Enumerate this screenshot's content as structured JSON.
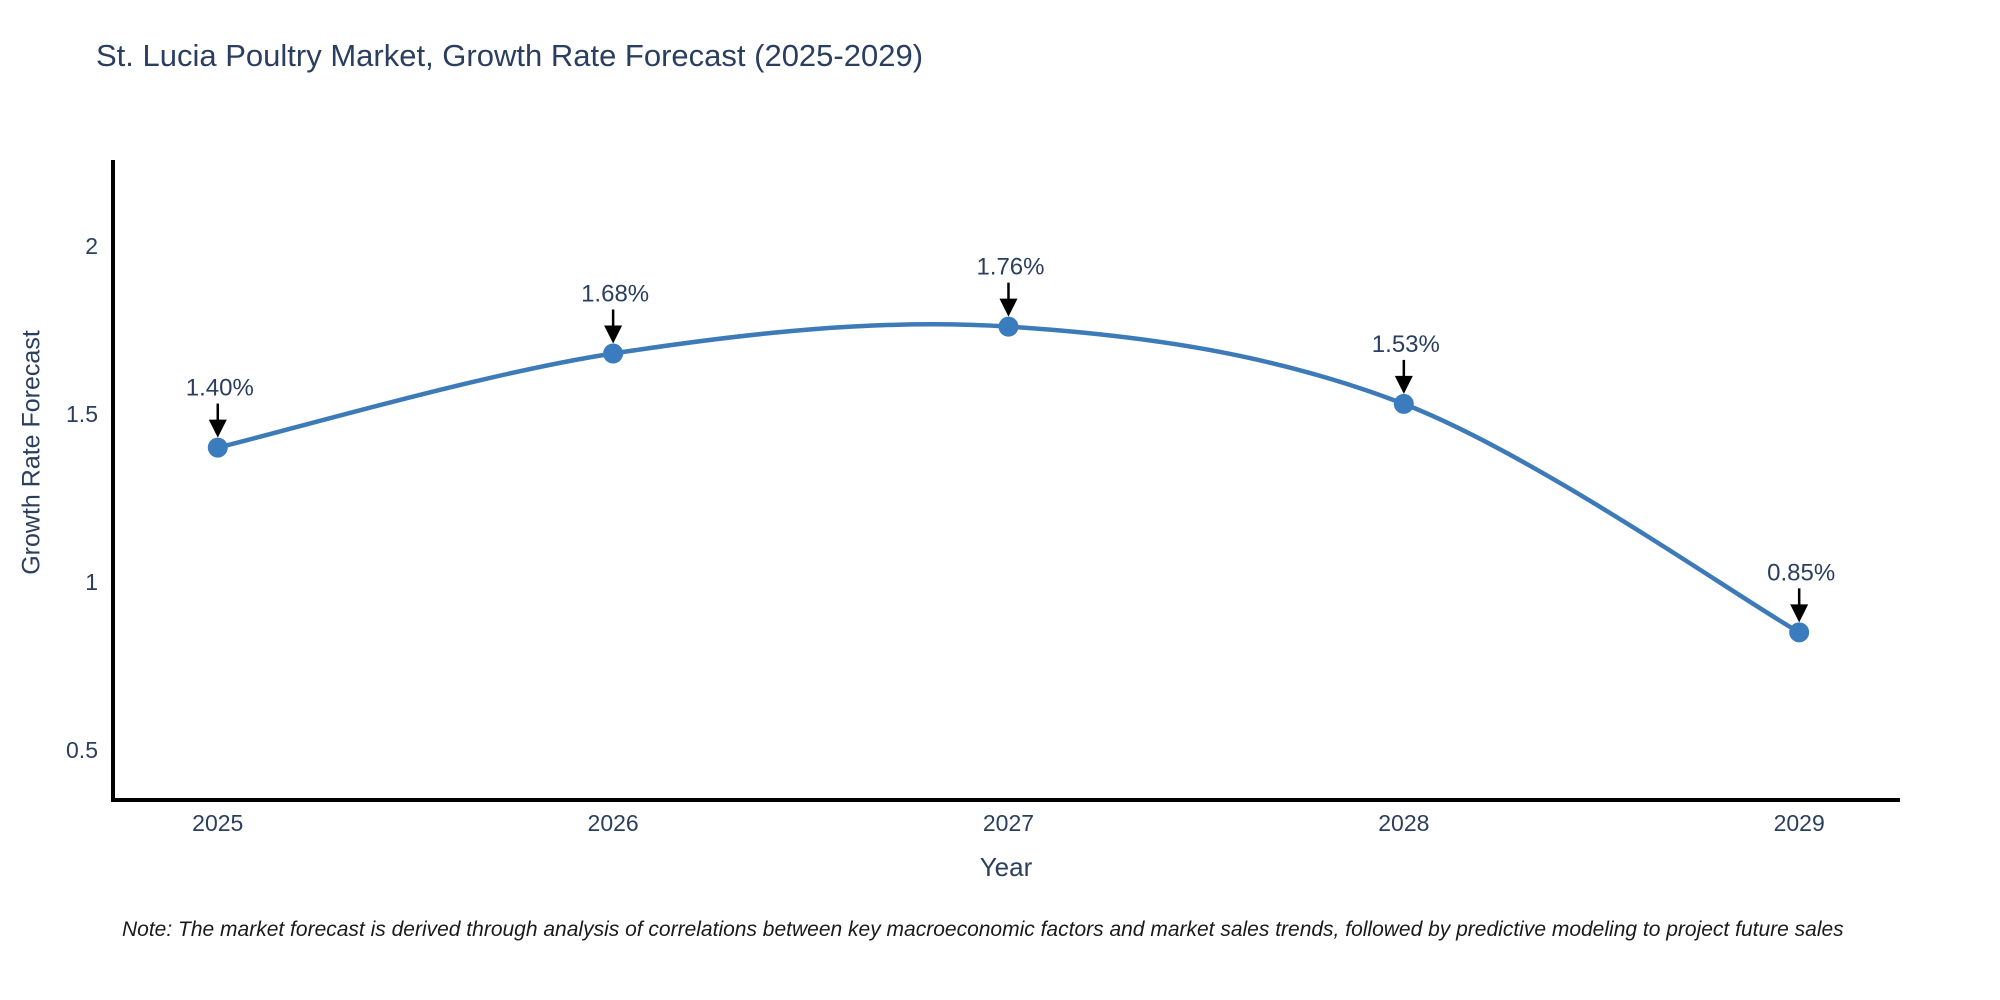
{
  "title": "St. Lucia Poultry Market, Growth Rate Forecast (2025-2029)",
  "footnote": "Note: The market forecast is derived through analysis of correlations between key macroeconomic factors and market sales trends, followed by predictive modeling to project future sales",
  "chart_data": {
    "type": "line",
    "title": "St. Lucia Poultry Market, Growth Rate Forecast (2025-2029)",
    "xlabel": "Year",
    "ylabel": "Growth Rate Forecast",
    "x": [
      2025,
      2026,
      2027,
      2028,
      2029
    ],
    "series": [
      {
        "name": "Growth Rate Forecast",
        "values": [
          1.4,
          1.68,
          1.76,
          1.53,
          0.85
        ],
        "point_labels": [
          "1.40%",
          "1.68%",
          "1.76%",
          "1.53%",
          "0.85%"
        ]
      }
    ],
    "x_tick_labels": [
      "2025",
      "2026",
      "2027",
      "2028",
      "2029"
    ],
    "y_ticks": [
      0.5,
      1,
      1.5,
      2
    ],
    "y_tick_labels": [
      "0.5",
      "1",
      "1.5",
      "2"
    ],
    "x_range": [
      2024.735,
      2029.255
    ],
    "y_range": [
      0.351,
      2.256
    ],
    "line_shape": "spline",
    "grid": false,
    "legend": "none",
    "annotations": "black down-arrows pointing from each percentage label to its data point",
    "colors": {
      "line": "#3d7ab8",
      "marker": "#3b7cbe",
      "axis_line": "#000000",
      "tick_text": "#2a3f5f",
      "title_text": "#2a3f5f",
      "annotation_text": "#2a3f5f",
      "annotation_arrow": "#000000",
      "note_text": "#1a1a1a",
      "background": "#ffffff"
    }
  }
}
